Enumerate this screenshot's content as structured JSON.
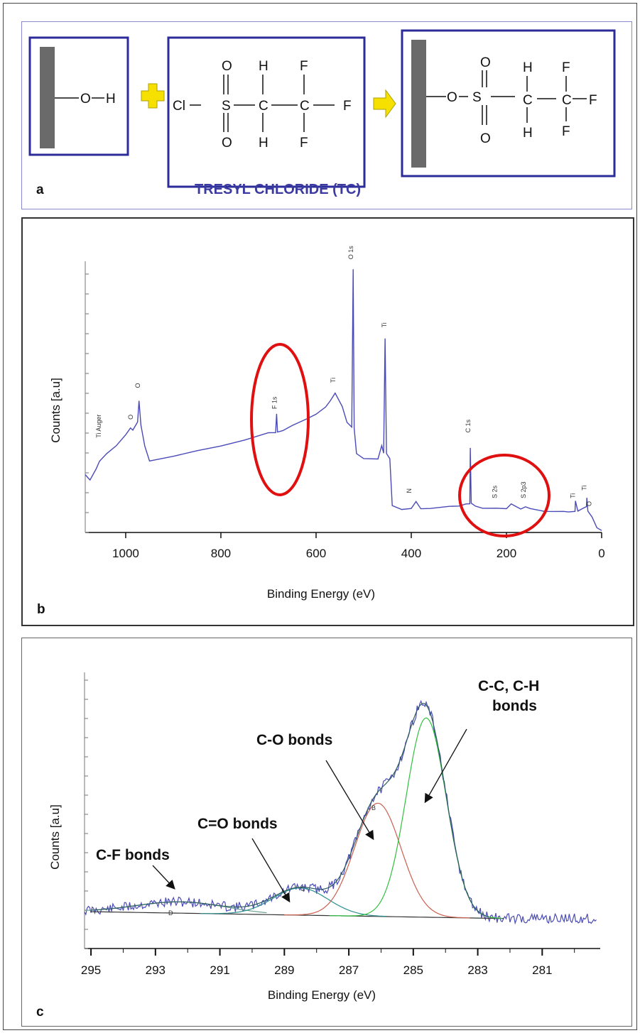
{
  "panel_a": {
    "letter": "a",
    "caption": "TRESYL CHLORIDE (TC)",
    "caption_color": "#3a3aa0",
    "box_color": "#2b2b9a",
    "plus_color": "#f5e000",
    "reactant_surface": {
      "o": "O",
      "h": "H"
    },
    "tresyl": {
      "cl": "Cl",
      "s": "S",
      "c": "C",
      "o": "O",
      "h": "H",
      "f": "F"
    },
    "product": {
      "o": "O",
      "s": "S",
      "c": "C",
      "h": "H",
      "f": "F"
    }
  },
  "panel_b": {
    "letter": "b",
    "circle_color": "#e01010",
    "line_color": "#4a4ab8",
    "chart_data": {
      "type": "line",
      "xlabel": "Binding Energy (eV)",
      "ylabel": "Counts [a.u]",
      "xlim": [
        1085,
        0
      ],
      "x_ticks": [
        "1000",
        "800",
        "600",
        "400",
        "200",
        "0"
      ],
      "x_tick_values": [
        1000,
        800,
        600,
        400,
        200,
        0
      ],
      "peak_labels": [
        "Ti Auger",
        "O",
        "O",
        "F 1s",
        "Ti",
        "O 1s",
        "Ti",
        "N",
        "C 1s",
        "S 2s",
        "S 2p3",
        "Ti",
        "Ti",
        "O"
      ],
      "series": [
        {
          "x": [
            1085,
            1075,
            1062,
            1055,
            1040,
            1020,
            1000,
            990,
            985,
            975,
            972,
            968,
            960,
            950,
            900,
            850,
            800,
            750,
            700,
            685,
            683,
            681,
            670,
            650,
            620,
            600,
            580,
            570,
            560,
            545,
            535,
            525,
            522,
            520,
            515,
            500,
            470,
            462,
            458,
            455,
            452,
            445,
            440,
            420,
            400,
            390,
            380,
            360,
            320,
            300,
            285,
            277,
            276,
            274,
            265,
            250,
            220,
            200,
            190,
            170,
            160,
            150,
            120,
            100,
            80,
            70,
            56,
            55,
            50,
            40,
            32,
            31,
            29,
            20,
            10,
            0
          ],
          "y": [
            0.22,
            0.2,
            0.24,
            0.27,
            0.3,
            0.33,
            0.37,
            0.4,
            0.39,
            0.42,
            0.5,
            0.41,
            0.33,
            0.27,
            0.29,
            0.31,
            0.33,
            0.35,
            0.38,
            0.38,
            0.45,
            0.38,
            0.39,
            0.41,
            0.43,
            0.45,
            0.48,
            0.5,
            0.53,
            0.48,
            0.42,
            0.4,
            1.0,
            0.4,
            0.3,
            0.28,
            0.28,
            0.33,
            0.3,
            0.74,
            0.3,
            0.28,
            0.1,
            0.09,
            0.09,
            0.12,
            0.09,
            0.09,
            0.1,
            0.1,
            0.11,
            0.11,
            0.32,
            0.11,
            0.1,
            0.09,
            0.09,
            0.09,
            0.11,
            0.09,
            0.1,
            0.09,
            0.08,
            0.08,
            0.08,
            0.08,
            0.08,
            0.12,
            0.08,
            0.09,
            0.1,
            0.13,
            0.08,
            0.06,
            0.02,
            0.01
          ]
        }
      ]
    }
  },
  "panel_c": {
    "letter": "c",
    "colors": {
      "raw": "#4a4ab8",
      "envelope": "#2e6e5e",
      "c_o": "#cc6050",
      "c_c": "#30c040",
      "c_f": "#6aa090",
      "baseline": "#333333"
    },
    "annotations": [
      "C-C, C-H",
      "bonds",
      "C-O bonds",
      "C=O bonds",
      "C-F bonds"
    ],
    "peak_labels": [
      "B",
      "C",
      "D"
    ],
    "chart_data": {
      "type": "line",
      "xlabel": "Binding Energy (eV)",
      "ylabel": "Counts [a.u]",
      "xlim": [
        295.2,
        279.2
      ],
      "x_ticks": [
        "295",
        "293",
        "291",
        "289",
        "287",
        "285",
        "283",
        "281"
      ],
      "x_tick_values": [
        295,
        293,
        291,
        289,
        287,
        285,
        283,
        281
      ],
      "series": [
        {
          "name": "C-C, C-H bonds",
          "center": 284.6,
          "amplitude": 0.88,
          "sigma": 0.62
        },
        {
          "name": "C-O bonds",
          "center": 286.1,
          "amplitude": 0.5,
          "sigma": 0.72
        },
        {
          "name": "C=O bonds",
          "center": 288.5,
          "amplitude": 0.12,
          "sigma": 0.85
        },
        {
          "name": "C-F bonds",
          "center": 292.2,
          "amplitude": 0.05,
          "sigma": 1.4
        }
      ]
    }
  }
}
